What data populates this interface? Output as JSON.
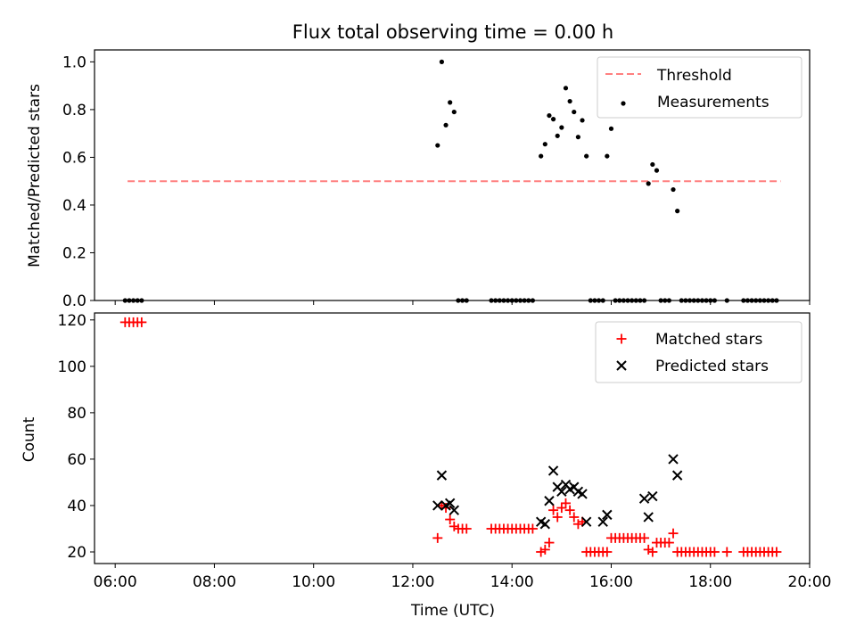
{
  "title": "Flux total observing time = 0.00 h",
  "chart_data": [
    {
      "type": "scatter",
      "ylabel": "Matched/Predicted stars",
      "xlim": [
        "05:35",
        "20:00"
      ],
      "ylim": [
        0,
        1.05
      ],
      "yticks": [
        "0.0",
        "0.2",
        "0.4",
        "0.6",
        "0.8",
        "1.0"
      ],
      "grid": false,
      "legend_position": "top-right",
      "series": [
        {
          "name": "Threshold",
          "style": "dashed-line",
          "color": "#ff7f7f",
          "x": [
            "06:15",
            "19:25"
          ],
          "y": [
            0.5,
            0.5
          ]
        },
        {
          "name": "Measurements",
          "style": "dot",
          "color": "#000000",
          "x": [
            "06:12",
            "06:17",
            "06:22",
            "06:27",
            "06:32",
            "12:30",
            "12:35",
            "12:40",
            "12:45",
            "12:50",
            "12:55",
            "13:00",
            "13:05",
            "13:35",
            "13:40",
            "13:45",
            "13:50",
            "13:55",
            "14:00",
            "14:05",
            "14:10",
            "14:15",
            "14:20",
            "14:25",
            "14:35",
            "14:40",
            "14:45",
            "14:50",
            "14:55",
            "15:00",
            "15:05",
            "15:10",
            "15:15",
            "15:20",
            "15:25",
            "15:30",
            "15:35",
            "15:40",
            "15:45",
            "15:50",
            "15:55",
            "16:00",
            "16:05",
            "16:10",
            "16:15",
            "16:20",
            "16:25",
            "16:30",
            "16:35",
            "16:40",
            "16:45",
            "16:50",
            "16:55",
            "17:00",
            "17:05",
            "17:10",
            "17:15",
            "17:20",
            "17:25",
            "17:30",
            "17:35",
            "17:40",
            "17:45",
            "17:50",
            "17:55",
            "18:00",
            "18:05",
            "18:20",
            "18:40",
            "18:45",
            "18:50",
            "18:55",
            "19:00",
            "19:05",
            "19:10",
            "19:15",
            "19:20"
          ],
          "y": [
            0,
            0,
            0,
            0,
            0,
            0.65,
            1.0,
            0.735,
            0.83,
            0.79,
            0,
            0,
            0,
            0,
            0,
            0,
            0,
            0,
            0,
            0,
            0,
            0,
            0,
            0,
            0.605,
            0.655,
            0.775,
            0.76,
            0.69,
            0.725,
            0.89,
            0.835,
            0.79,
            0.685,
            0.755,
            0.605,
            0,
            0,
            0,
            0,
            0.605,
            0.72,
            0,
            0,
            0,
            0,
            0,
            0,
            0,
            0,
            0.49,
            0.57,
            0.545,
            0,
            0,
            0,
            0.465,
            0.375,
            0,
            0,
            0,
            0,
            0,
            0,
            0,
            0,
            0,
            0,
            0,
            0,
            0,
            0,
            0,
            0,
            0,
            0,
            0
          ]
        }
      ]
    },
    {
      "type": "scatter",
      "xlabel": "Time (UTC)",
      "ylabel": "Count",
      "xlim": [
        "05:35",
        "20:00"
      ],
      "xticks": [
        "06:00",
        "08:00",
        "10:00",
        "12:00",
        "14:00",
        "16:00",
        "18:00",
        "20:00"
      ],
      "ylim": [
        15,
        123
      ],
      "yticks": [
        "20",
        "40",
        "60",
        "80",
        "100",
        "120"
      ],
      "grid": false,
      "legend_position": "top-right",
      "series": [
        {
          "name": "Matched stars",
          "style": "plus",
          "color": "#ff0000",
          "x": [
            "06:12",
            "06:17",
            "06:22",
            "06:27",
            "06:32",
            "12:30",
            "12:35",
            "12:40",
            "12:45",
            "12:50",
            "12:55",
            "13:00",
            "13:05",
            "13:35",
            "13:40",
            "13:45",
            "13:50",
            "13:55",
            "14:00",
            "14:05",
            "14:10",
            "14:15",
            "14:20",
            "14:25",
            "14:35",
            "14:40",
            "14:45",
            "14:50",
            "14:55",
            "15:00",
            "15:05",
            "15:10",
            "15:15",
            "15:20",
            "15:25",
            "15:30",
            "15:35",
            "15:40",
            "15:45",
            "15:50",
            "15:55",
            "16:00",
            "16:05",
            "16:10",
            "16:15",
            "16:20",
            "16:25",
            "16:30",
            "16:35",
            "16:40",
            "16:45",
            "16:50",
            "16:55",
            "17:00",
            "17:05",
            "17:10",
            "17:15",
            "17:20",
            "17:25",
            "17:30",
            "17:35",
            "17:40",
            "17:45",
            "17:50",
            "17:55",
            "18:00",
            "18:05",
            "18:20",
            "18:40",
            "18:45",
            "18:50",
            "18:55",
            "19:00",
            "19:05",
            "19:10",
            "19:15",
            "19:20"
          ],
          "y": [
            119,
            119,
            119,
            119,
            119,
            26,
            40,
            39,
            34,
            31,
            30,
            30,
            30,
            30,
            30,
            30,
            30,
            30,
            30,
            30,
            30,
            30,
            30,
            30,
            20,
            21,
            24,
            38,
            35,
            39,
            41,
            38,
            35,
            32,
            33,
            20,
            20,
            20,
            20,
            20,
            20,
            26,
            26,
            26,
            26,
            26,
            26,
            26,
            26,
            26,
            21,
            20,
            24,
            24,
            24,
            24,
            28,
            20,
            20,
            20,
            20,
            20,
            20,
            20,
            20,
            20,
            20,
            20,
            20,
            20,
            20,
            20,
            20,
            20,
            20,
            20,
            20
          ]
        },
        {
          "name": "Predicted stars",
          "style": "x",
          "color": "#000000",
          "x": [
            "12:30",
            "12:35",
            "12:40",
            "12:45",
            "12:50",
            "14:35",
            "14:40",
            "14:45",
            "14:50",
            "14:55",
            "15:00",
            "15:05",
            "15:10",
            "15:15",
            "15:20",
            "15:25",
            "15:30",
            "15:50",
            "15:55",
            "16:40",
            "16:45",
            "16:50",
            "17:15",
            "17:20"
          ],
          "y": [
            40,
            53,
            40,
            41,
            38,
            33,
            32,
            42,
            55,
            48,
            46,
            49,
            47,
            48,
            46,
            45,
            33,
            33,
            36,
            43,
            35,
            44,
            60,
            53
          ]
        }
      ]
    }
  ]
}
